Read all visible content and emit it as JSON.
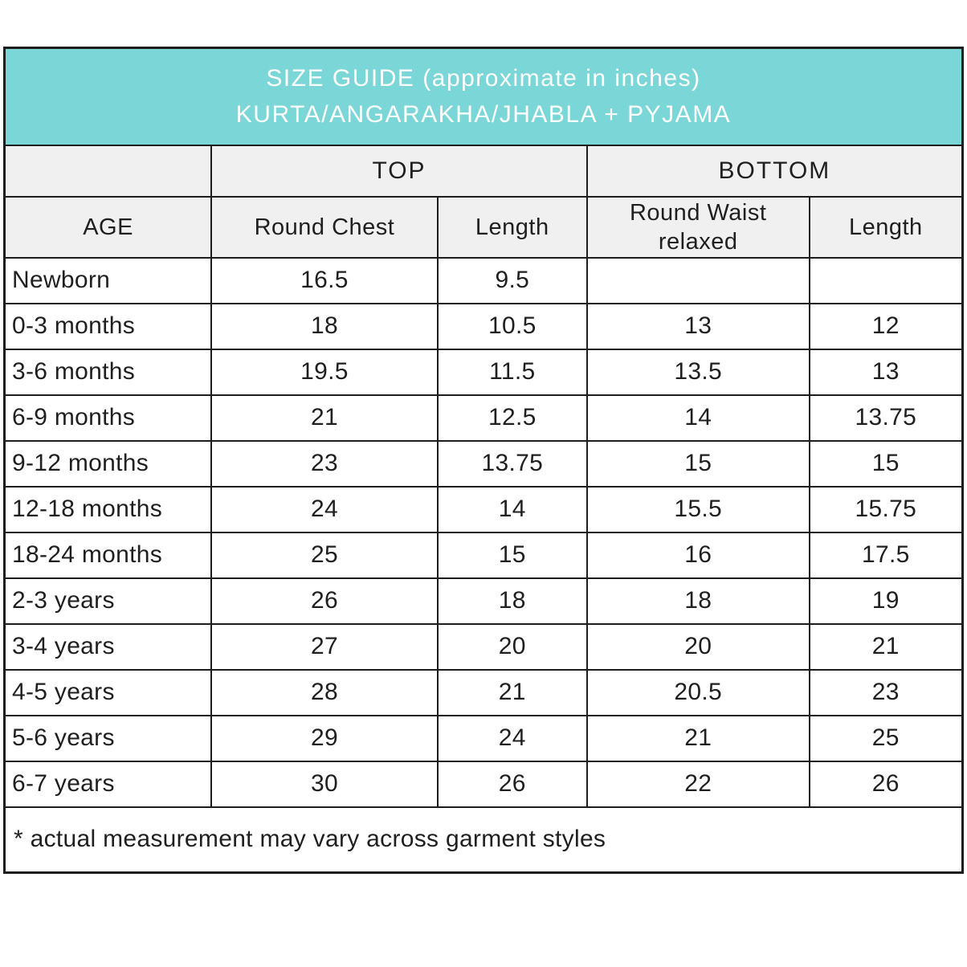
{
  "colors": {
    "banner_bg": "#7bd6d7",
    "banner_text": "#ffffff",
    "header_bg": "#f0f0f1",
    "border": "#1d1d1d",
    "text": "#1f1f1f"
  },
  "chart_data": {
    "type": "table",
    "title_line1": "SIZE GUIDE (approximate in inches)",
    "title_line2": "KURTA/ANGARAKHA/JHABLA + PYJAMA",
    "groups": {
      "top": "TOP",
      "bottom": "BOTTOM"
    },
    "columns": [
      "AGE",
      "Round Chest",
      "Length",
      "Round Waist relaxed",
      "Length"
    ],
    "rows": [
      [
        "Newborn",
        "16.5",
        "9.5",
        "",
        ""
      ],
      [
        "0-3 months",
        "18",
        "10.5",
        "13",
        "12"
      ],
      [
        "3-6 months",
        "19.5",
        "11.5",
        "13.5",
        "13"
      ],
      [
        "6-9 months",
        "21",
        "12.5",
        "14",
        "13.75"
      ],
      [
        "9-12 months",
        "23",
        "13.75",
        "15",
        "15"
      ],
      [
        "12-18 months",
        "24",
        "14",
        "15.5",
        "15.75"
      ],
      [
        "18-24 months",
        "25",
        "15",
        "16",
        "17.5"
      ],
      [
        "2-3 years",
        "26",
        "18",
        "18",
        "19"
      ],
      [
        "3-4 years",
        "27",
        "20",
        "20",
        "21"
      ],
      [
        "4-5 years",
        "28",
        "21",
        "20.5",
        "23"
      ],
      [
        "5-6 years",
        "29",
        "24",
        "21",
        "25"
      ],
      [
        "6-7 years",
        "30",
        "26",
        "22",
        "26"
      ]
    ],
    "footnote": "* actual measurement may vary across garment styles"
  }
}
